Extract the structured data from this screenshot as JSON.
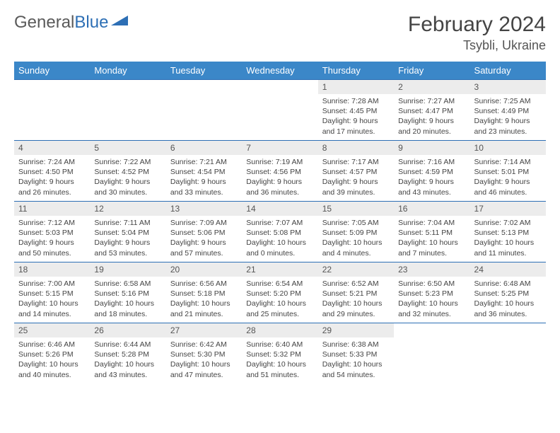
{
  "brand": {
    "part1": "General",
    "part2": "Blue"
  },
  "title": {
    "month": "February 2024",
    "location": "Tsybli, Ukraine"
  },
  "colors": {
    "header_bg": "#3b87c8",
    "border": "#2d6fb5",
    "daynum_bg": "#ececec",
    "text": "#444444"
  },
  "weekdays": [
    "Sunday",
    "Monday",
    "Tuesday",
    "Wednesday",
    "Thursday",
    "Friday",
    "Saturday"
  ],
  "weeks": [
    [
      null,
      null,
      null,
      null,
      {
        "n": "1",
        "sunrise": "7:28 AM",
        "sunset": "4:45 PM",
        "dl1": "Daylight: 9 hours",
        "dl2": "and 17 minutes."
      },
      {
        "n": "2",
        "sunrise": "7:27 AM",
        "sunset": "4:47 PM",
        "dl1": "Daylight: 9 hours",
        "dl2": "and 20 minutes."
      },
      {
        "n": "3",
        "sunrise": "7:25 AM",
        "sunset": "4:49 PM",
        "dl1": "Daylight: 9 hours",
        "dl2": "and 23 minutes."
      }
    ],
    [
      {
        "n": "4",
        "sunrise": "7:24 AM",
        "sunset": "4:50 PM",
        "dl1": "Daylight: 9 hours",
        "dl2": "and 26 minutes."
      },
      {
        "n": "5",
        "sunrise": "7:22 AM",
        "sunset": "4:52 PM",
        "dl1": "Daylight: 9 hours",
        "dl2": "and 30 minutes."
      },
      {
        "n": "6",
        "sunrise": "7:21 AM",
        "sunset": "4:54 PM",
        "dl1": "Daylight: 9 hours",
        "dl2": "and 33 minutes."
      },
      {
        "n": "7",
        "sunrise": "7:19 AM",
        "sunset": "4:56 PM",
        "dl1": "Daylight: 9 hours",
        "dl2": "and 36 minutes."
      },
      {
        "n": "8",
        "sunrise": "7:17 AM",
        "sunset": "4:57 PM",
        "dl1": "Daylight: 9 hours",
        "dl2": "and 39 minutes."
      },
      {
        "n": "9",
        "sunrise": "7:16 AM",
        "sunset": "4:59 PM",
        "dl1": "Daylight: 9 hours",
        "dl2": "and 43 minutes."
      },
      {
        "n": "10",
        "sunrise": "7:14 AM",
        "sunset": "5:01 PM",
        "dl1": "Daylight: 9 hours",
        "dl2": "and 46 minutes."
      }
    ],
    [
      {
        "n": "11",
        "sunrise": "7:12 AM",
        "sunset": "5:03 PM",
        "dl1": "Daylight: 9 hours",
        "dl2": "and 50 minutes."
      },
      {
        "n": "12",
        "sunrise": "7:11 AM",
        "sunset": "5:04 PM",
        "dl1": "Daylight: 9 hours",
        "dl2": "and 53 minutes."
      },
      {
        "n": "13",
        "sunrise": "7:09 AM",
        "sunset": "5:06 PM",
        "dl1": "Daylight: 9 hours",
        "dl2": "and 57 minutes."
      },
      {
        "n": "14",
        "sunrise": "7:07 AM",
        "sunset": "5:08 PM",
        "dl1": "Daylight: 10 hours",
        "dl2": "and 0 minutes."
      },
      {
        "n": "15",
        "sunrise": "7:05 AM",
        "sunset": "5:09 PM",
        "dl1": "Daylight: 10 hours",
        "dl2": "and 4 minutes."
      },
      {
        "n": "16",
        "sunrise": "7:04 AM",
        "sunset": "5:11 PM",
        "dl1": "Daylight: 10 hours",
        "dl2": "and 7 minutes."
      },
      {
        "n": "17",
        "sunrise": "7:02 AM",
        "sunset": "5:13 PM",
        "dl1": "Daylight: 10 hours",
        "dl2": "and 11 minutes."
      }
    ],
    [
      {
        "n": "18",
        "sunrise": "7:00 AM",
        "sunset": "5:15 PM",
        "dl1": "Daylight: 10 hours",
        "dl2": "and 14 minutes."
      },
      {
        "n": "19",
        "sunrise": "6:58 AM",
        "sunset": "5:16 PM",
        "dl1": "Daylight: 10 hours",
        "dl2": "and 18 minutes."
      },
      {
        "n": "20",
        "sunrise": "6:56 AM",
        "sunset": "5:18 PM",
        "dl1": "Daylight: 10 hours",
        "dl2": "and 21 minutes."
      },
      {
        "n": "21",
        "sunrise": "6:54 AM",
        "sunset": "5:20 PM",
        "dl1": "Daylight: 10 hours",
        "dl2": "and 25 minutes."
      },
      {
        "n": "22",
        "sunrise": "6:52 AM",
        "sunset": "5:21 PM",
        "dl1": "Daylight: 10 hours",
        "dl2": "and 29 minutes."
      },
      {
        "n": "23",
        "sunrise": "6:50 AM",
        "sunset": "5:23 PM",
        "dl1": "Daylight: 10 hours",
        "dl2": "and 32 minutes."
      },
      {
        "n": "24",
        "sunrise": "6:48 AM",
        "sunset": "5:25 PM",
        "dl1": "Daylight: 10 hours",
        "dl2": "and 36 minutes."
      }
    ],
    [
      {
        "n": "25",
        "sunrise": "6:46 AM",
        "sunset": "5:26 PM",
        "dl1": "Daylight: 10 hours",
        "dl2": "and 40 minutes."
      },
      {
        "n": "26",
        "sunrise": "6:44 AM",
        "sunset": "5:28 PM",
        "dl1": "Daylight: 10 hours",
        "dl2": "and 43 minutes."
      },
      {
        "n": "27",
        "sunrise": "6:42 AM",
        "sunset": "5:30 PM",
        "dl1": "Daylight: 10 hours",
        "dl2": "and 47 minutes."
      },
      {
        "n": "28",
        "sunrise": "6:40 AM",
        "sunset": "5:32 PM",
        "dl1": "Daylight: 10 hours",
        "dl2": "and 51 minutes."
      },
      {
        "n": "29",
        "sunrise": "6:38 AM",
        "sunset": "5:33 PM",
        "dl1": "Daylight: 10 hours",
        "dl2": "and 54 minutes."
      },
      null,
      null
    ]
  ]
}
